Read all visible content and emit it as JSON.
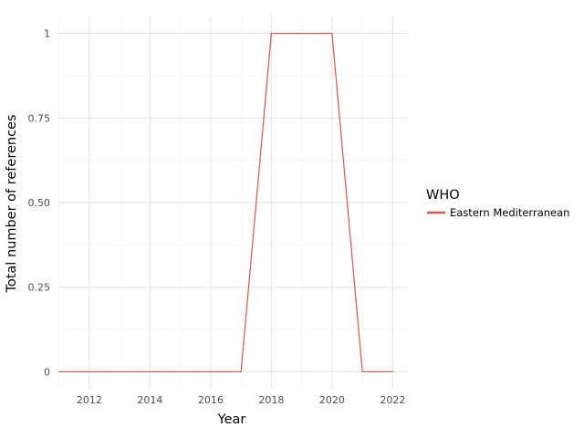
{
  "chart_data": {
    "type": "line",
    "title": "",
    "xlabel": "Year",
    "ylabel": "Total number of references",
    "x": [
      2011,
      2012,
      2013,
      2014,
      2015,
      2016,
      2017,
      2018,
      2019,
      2020,
      2021,
      2022
    ],
    "series": [
      {
        "name": "Eastern Mediterranean",
        "values": [
          0,
          0,
          0,
          0,
          0,
          0,
          0,
          1,
          1,
          1,
          0,
          0
        ],
        "color": "#d9534f"
      }
    ],
    "xlim": [
      2010.95,
      2022.5
    ],
    "ylim": [
      -0.05,
      1.05
    ],
    "x_ticks": [
      2012,
      2014,
      2016,
      2018,
      2020,
      2022
    ],
    "x_tick_labels": [
      "2012",
      "2014",
      "2016",
      "2018",
      "2020",
      "2022"
    ],
    "y_ticks": [
      0,
      0.25,
      0.5,
      0.75,
      1
    ],
    "y_tick_labels": [
      "0",
      "0.25",
      "0.50",
      "0.75",
      "1"
    ],
    "grid": true,
    "legend": {
      "title": "WHO",
      "placement": "right"
    }
  }
}
